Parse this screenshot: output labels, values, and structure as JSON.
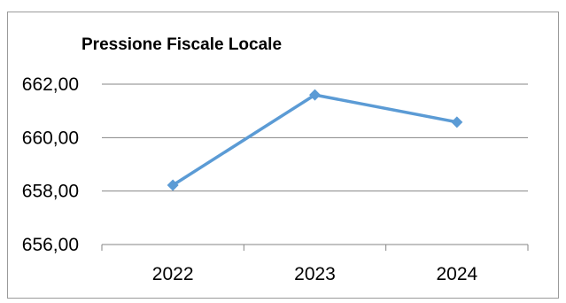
{
  "chart_data": {
    "type": "line",
    "title": "Pressione Fiscale Locale",
    "categories": [
      "2022",
      "2023",
      "2024"
    ],
    "series": [
      {
        "values": [
          658.22,
          661.6,
          660.58
        ],
        "color": "#5b9bd5",
        "marker": "diamond"
      }
    ],
    "xlabel": "",
    "ylabel": "",
    "ylim": [
      656,
      662
    ],
    "yticks": [
      656,
      658,
      660,
      662
    ],
    "ytick_labels": [
      "656,00",
      "658,00",
      "660,00",
      "662,00"
    ],
    "grid": true,
    "legend": false
  }
}
